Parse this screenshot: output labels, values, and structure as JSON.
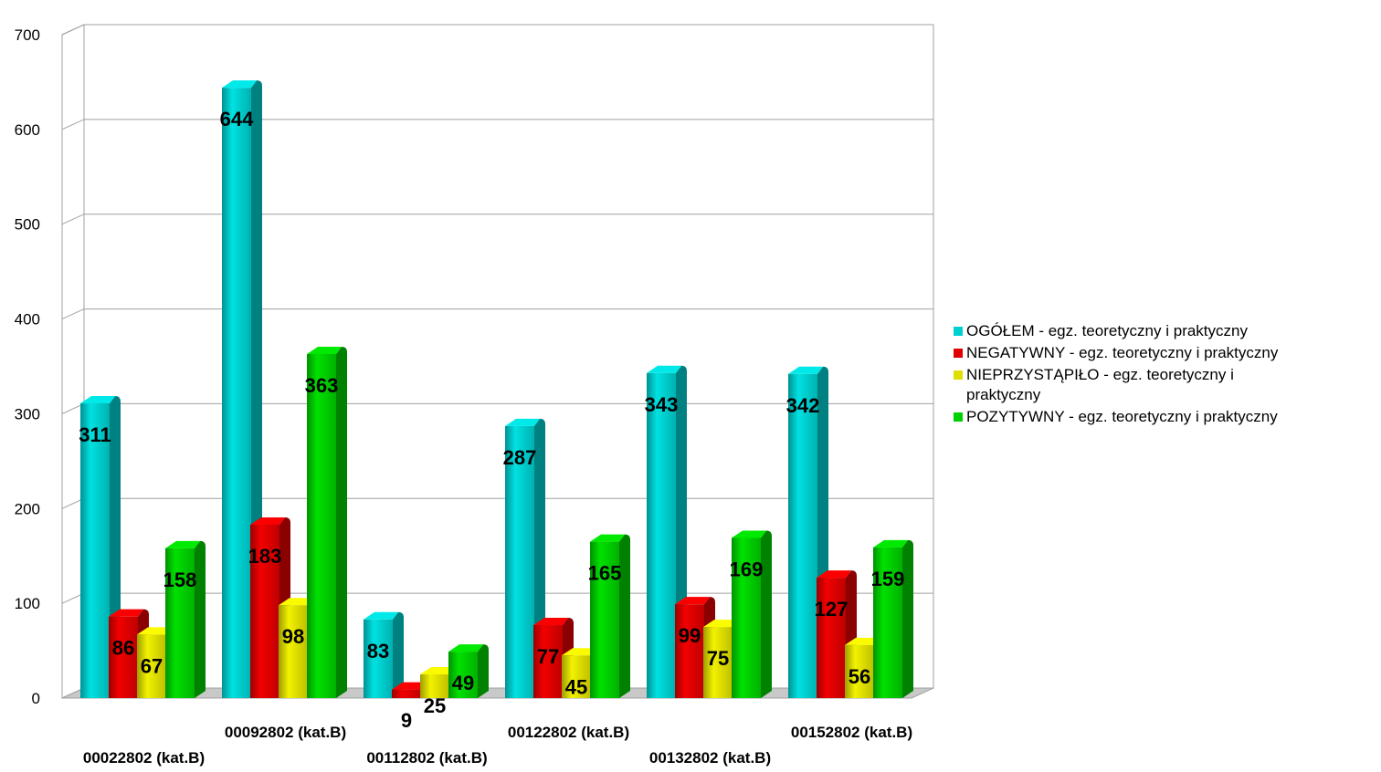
{
  "chart_data": {
    "type": "bar",
    "title": "",
    "xlabel": "",
    "ylabel": "",
    "ylim": [
      0,
      700
    ],
    "yticks": [
      0,
      100,
      200,
      300,
      400,
      500,
      600,
      700
    ],
    "grid": true,
    "legend_position": "right",
    "categories": [
      "00022802 (kat.B)",
      "00092802 (kat.B)",
      "00112802 (kat.B)",
      "00122802 (kat.B)",
      "00132802 (kat.B)",
      "00152802 (kat.B)"
    ],
    "series": [
      {
        "name": "OGÓŁEM - egz. teoretyczny i praktyczny",
        "color": "#00d0d0",
        "values": [
          311,
          644,
          83,
          287,
          343,
          342
        ]
      },
      {
        "name": "NEGATYWNY - egz. teoretyczny i praktyczny",
        "color": "#e00000",
        "values": [
          86,
          183,
          9,
          77,
          99,
          127
        ]
      },
      {
        "name": "NIEPRZYSTĄPIŁO - egz. teoretyczny i praktyczny",
        "color": "#e0e000",
        "values": [
          67,
          98,
          25,
          45,
          75,
          56
        ]
      },
      {
        "name": "POZYTYWNY - egz. teoretyczny i praktyczny",
        "color": "#00d000",
        "values": [
          158,
          363,
          49,
          165,
          169,
          159
        ]
      }
    ]
  }
}
